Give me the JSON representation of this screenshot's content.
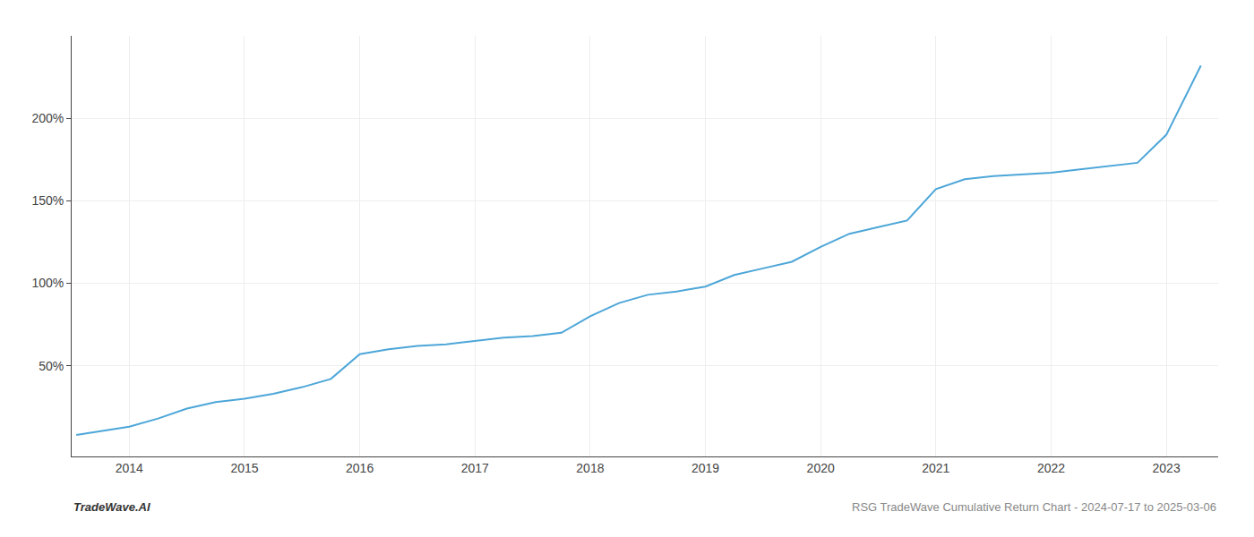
{
  "chart_data": {
    "type": "line",
    "annotations": [
      "TradeWave.AI",
      "RSG TradeWave Cumulative Return Chart - 2024-07-17 to 2025-03-06"
    ],
    "x": [
      2013.54,
      2014.0,
      2014.25,
      2014.5,
      2014.75,
      2015.0,
      2015.25,
      2015.5,
      2015.75,
      2016.0,
      2016.25,
      2016.5,
      2016.75,
      2017.0,
      2017.25,
      2017.5,
      2017.75,
      2018.0,
      2018.25,
      2018.5,
      2018.75,
      2019.0,
      2019.25,
      2019.5,
      2019.75,
      2020.0,
      2020.25,
      2020.5,
      2020.75,
      2021.0,
      2021.25,
      2021.5,
      2021.75,
      2022.0,
      2022.25,
      2022.5,
      2022.75,
      2023.0,
      2023.3
    ],
    "values": [
      8,
      13,
      18,
      24,
      28,
      30,
      33,
      37,
      42,
      57,
      60,
      62,
      63,
      65,
      67,
      68,
      70,
      80,
      88,
      93,
      95,
      98,
      105,
      109,
      113,
      122,
      130,
      134,
      138,
      157,
      163,
      165,
      166,
      167,
      169,
      171,
      173,
      190,
      232
    ],
    "color": "#4da6d8",
    "xlim": [
      2013.5,
      2023.45
    ],
    "ylim": [
      -5,
      250
    ],
    "xticks": [
      2014,
      2015,
      2016,
      2017,
      2018,
      2019,
      2020,
      2021,
      2022,
      2023
    ],
    "yticks": [
      {
        "value": 50,
        "label": "50%"
      },
      {
        "value": 100,
        "label": "100%"
      },
      {
        "value": 150,
        "label": "150%"
      },
      {
        "value": 200,
        "label": "200%"
      }
    ],
    "grid": true
  }
}
